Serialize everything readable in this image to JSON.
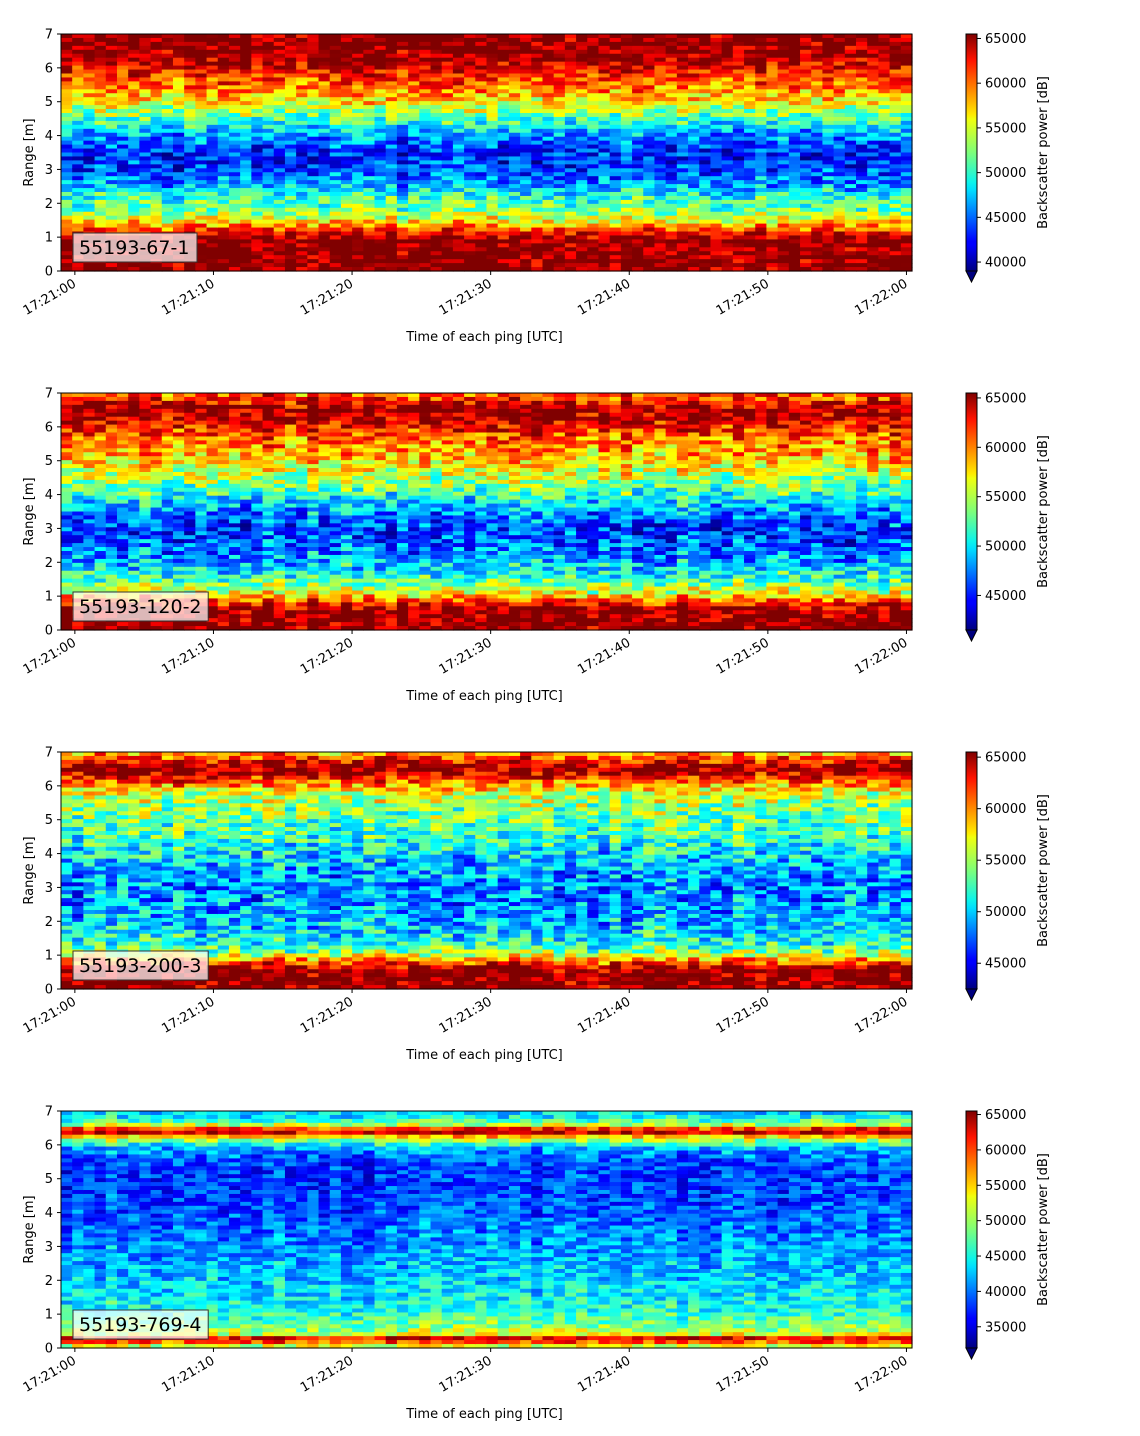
{
  "chart_data": [
    {
      "type": "heatmap",
      "label": "55193-67-1",
      "xlabel": "Time of each ping [UTC]",
      "ylabel": "Range [m]",
      "colorbar_label": "Backscatter power [dB]",
      "colormap": "jet",
      "x_ticks": [
        "17:21:00",
        "17:21:10",
        "17:21:20",
        "17:21:30",
        "17:21:40",
        "17:21:50",
        "17:22:00"
      ],
      "y_ticks": [
        0,
        1,
        2,
        3,
        4,
        5,
        6,
        7
      ],
      "ylim": [
        0,
        7
      ],
      "color_range": [
        39000,
        65500
      ],
      "colorbar_ticks": [
        40000,
        45000,
        50000,
        55000,
        60000,
        65000
      ],
      "colorbar_tick_labels": [
        "40000",
        "45000",
        "50000",
        "55000",
        "60000",
        "65000"
      ],
      "profile": {
        "range_m": [
          0.1,
          0.3,
          0.6,
          0.9,
          1.1,
          1.4,
          1.8,
          2.2,
          2.6,
          3.0,
          3.4,
          3.8,
          4.2,
          4.6,
          5.0,
          5.4,
          5.8,
          6.2,
          6.5,
          6.8,
          7.0
        ],
        "power": [
          65500,
          65500,
          65500,
          65500,
          63000,
          57000,
          52000,
          50000,
          46000,
          44000,
          43000,
          45000,
          48000,
          52000,
          56000,
          59000,
          61500,
          64000,
          65500,
          65500,
          65500
        ]
      }
    },
    {
      "type": "heatmap",
      "label": "55193-120-2",
      "xlabel": "Time of each ping [UTC]",
      "ylabel": "Range [m]",
      "colorbar_label": "Backscatter power [dB]",
      "colormap": "jet",
      "x_ticks": [
        "17:21:00",
        "17:21:10",
        "17:21:20",
        "17:21:30",
        "17:21:40",
        "17:21:50",
        "17:22:00"
      ],
      "y_ticks": [
        0,
        1,
        2,
        3,
        4,
        5,
        6,
        7
      ],
      "ylim": [
        0,
        7
      ],
      "color_range": [
        41500,
        65500
      ],
      "colorbar_ticks": [
        45000,
        50000,
        55000,
        60000,
        65000
      ],
      "colorbar_tick_labels": [
        "45000",
        "50000",
        "55000",
        "60000",
        "65000"
      ],
      "profile": {
        "range_m": [
          0.1,
          0.3,
          0.6,
          0.9,
          1.1,
          1.4,
          1.8,
          2.2,
          2.6,
          3.0,
          3.4,
          3.8,
          4.2,
          4.6,
          5.0,
          5.4,
          5.8,
          6.2,
          6.5,
          6.8,
          7.0
        ],
        "power": [
          65500,
          65500,
          65500,
          60000,
          56000,
          53000,
          50000,
          48000,
          46500,
          46000,
          47500,
          50000,
          53000,
          55500,
          57500,
          59000,
          61000,
          64000,
          65500,
          62000,
          60000
        ]
      }
    },
    {
      "type": "heatmap",
      "label": "55193-200-3",
      "xlabel": "Time of each ping [UTC]",
      "ylabel": "Range [m]",
      "colorbar_label": "Backscatter power [dB]",
      "colormap": "jet",
      "x_ticks": [
        "17:21:00",
        "17:21:10",
        "17:21:20",
        "17:21:30",
        "17:21:40",
        "17:21:50",
        "17:22:00"
      ],
      "y_ticks": [
        0,
        1,
        2,
        3,
        4,
        5,
        6,
        7
      ],
      "ylim": [
        0,
        7
      ],
      "color_range": [
        42500,
        65500
      ],
      "colorbar_ticks": [
        45000,
        50000,
        55000,
        60000,
        65000
      ],
      "colorbar_tick_labels": [
        "45000",
        "50000",
        "55000",
        "60000",
        "65000"
      ],
      "profile": {
        "range_m": [
          0.1,
          0.3,
          0.6,
          0.9,
          1.1,
          1.4,
          1.8,
          2.2,
          2.6,
          3.0,
          3.4,
          3.8,
          4.2,
          4.6,
          5.0,
          5.4,
          5.8,
          6.2,
          6.5,
          6.8,
          7.0
        ],
        "power": [
          65500,
          65500,
          65500,
          58000,
          54000,
          51500,
          50000,
          49000,
          48500,
          48500,
          49000,
          50000,
          51500,
          52500,
          53500,
          54500,
          56000,
          62000,
          65500,
          62000,
          58000
        ]
      }
    },
    {
      "type": "heatmap",
      "label": "55193-769-4",
      "xlabel": "Time of each ping [UTC]",
      "ylabel": "Range [m]",
      "colorbar_label": "Backscatter power [dB]",
      "colormap": "jet",
      "x_ticks": [
        "17:21:00",
        "17:21:10",
        "17:21:20",
        "17:21:30",
        "17:21:40",
        "17:21:50",
        "17:22:00"
      ],
      "y_ticks": [
        0,
        1,
        2,
        3,
        4,
        5,
        6,
        7
      ],
      "ylim": [
        0,
        7
      ],
      "color_range": [
        32000,
        65500
      ],
      "colorbar_ticks": [
        35000,
        40000,
        45000,
        50000,
        55000,
        60000,
        65000
      ],
      "colorbar_tick_labels": [
        "35000",
        "40000",
        "45000",
        "50000",
        "55000",
        "60000",
        "65000"
      ],
      "profile": {
        "range_m": [
          0.1,
          0.25,
          0.4,
          0.6,
          0.9,
          1.2,
          1.6,
          2.0,
          2.5,
          3.0,
          3.5,
          4.0,
          4.5,
          5.0,
          5.5,
          5.9,
          6.2,
          6.4,
          6.6,
          6.8,
          7.0
        ],
        "power": [
          52000,
          65500,
          52000,
          49000,
          47000,
          45000,
          44000,
          43000,
          42000,
          41000,
          40000,
          39000,
          38000,
          38000,
          38500,
          42000,
          52000,
          65500,
          50000,
          44000,
          43000
        ]
      }
    }
  ]
}
